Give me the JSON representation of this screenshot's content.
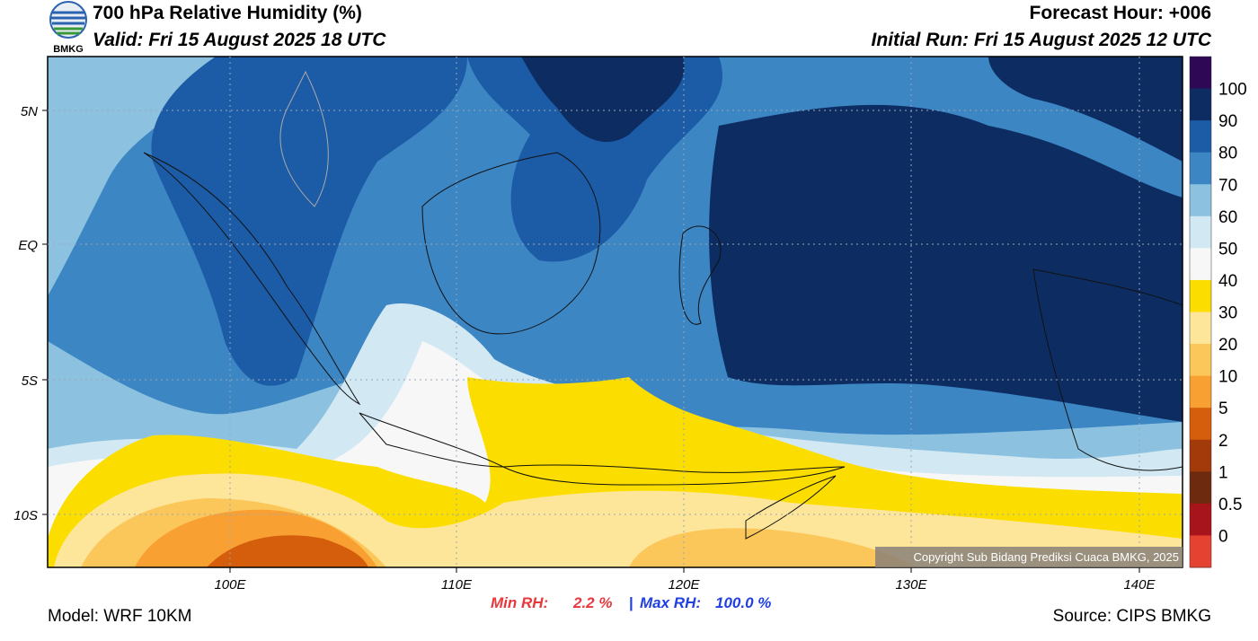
{
  "header": {
    "title": "700 hPa Relative Humidity (%)",
    "valid": "Valid: Fri 15 August 2025 18 UTC",
    "logo_text": "BMKG",
    "forecast_hour": "Forecast Hour: +006",
    "initial_run": "Initial Run: Fri 15 August 2025 12 UTC"
  },
  "map": {
    "lat_labels": [
      "5N",
      "EQ",
      "5S",
      "10S"
    ],
    "lon_labels": [
      "100E",
      "110E",
      "120E",
      "130E",
      "140E"
    ],
    "copyright": "Copyright Sub Bidang Prediksi Cuaca BMKG, 2025"
  },
  "colorbar": {
    "labels": [
      "100",
      "90",
      "80",
      "70",
      "60",
      "50",
      "40",
      "30",
      "20",
      "10",
      "5",
      "2",
      "1",
      "0.5",
      "0"
    ]
  },
  "footer": {
    "model": "Model: WRF 10KM",
    "min_rh_label": "Min RH:",
    "min_rh_value": "2.2 %",
    "separator": "|",
    "max_rh_label": "Max RH:",
    "max_rh_value": "100.0 %",
    "source": "Source: CIPS BMKG"
  }
}
